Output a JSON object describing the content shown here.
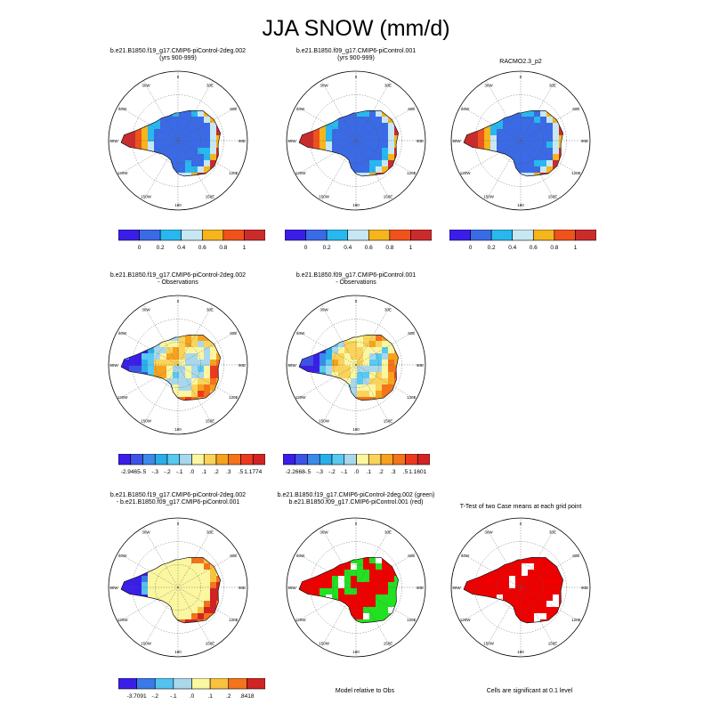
{
  "figure": {
    "title": "JJA SNOW (mm/d)",
    "lon_labels": [
      "0",
      "30E",
      "60E",
      "90E",
      "120E",
      "150E",
      "180",
      "150W",
      "120W",
      "90W",
      "60W",
      "30W"
    ]
  },
  "rows": [
    {
      "panels": [
        {
          "title1": "b.e21.B1850.f19_g17.CMIP6-piControl-2deg.002",
          "title2": "(yrs 900-999)",
          "scheme": "abs"
        },
        {
          "title1": "b.e21.B1850.f09_g17.CMIP6-piControl.001",
          "title2": "(yrs 900-999)",
          "scheme": "abs"
        },
        {
          "title1": "RACMO2.3_p2",
          "title2": "",
          "scheme": "abs"
        }
      ],
      "colorbars": [
        {
          "labels": [
            "0",
            "0.2",
            "0.4",
            "0.6",
            "0.8",
            "1"
          ]
        },
        {
          "labels": [
            "0",
            "0.2",
            "0.4",
            "0.6",
            "0.8",
            "1"
          ]
        },
        {
          "labels": [
            "0",
            "0.2",
            "0.4",
            "0.6",
            "0.8",
            "1"
          ]
        }
      ]
    },
    {
      "panels": [
        {
          "title1": "b.e21.B1850.f19_g17.CMIP6-piControl-2deg.002",
          "title2": "- Observations",
          "scheme": "diff"
        },
        {
          "title1": "b.e21.B1850.f09_g17.CMIP6-piControl.001",
          "title2": "- Observations",
          "scheme": "diff"
        }
      ],
      "colorbars": [
        {
          "labels": [
            "-2.9465",
            "-.5",
            "-.3",
            "-.2",
            "-.1",
            ".0",
            ".1",
            ".2",
            ".3",
            ".5",
            "1.1774"
          ]
        },
        {
          "labels": [
            "-2.2668",
            "-.5",
            "-.3",
            "-.2",
            "-.1",
            ".0",
            ".1",
            ".2",
            ".3",
            ".5",
            "1.1601"
          ]
        }
      ]
    },
    {
      "panels": [
        {
          "title1": "b.e21.B1850.f19_g17.CMIP6-piControl-2deg.002",
          "title2": "- b.e21.B1850.f09_g17.CMIP6-piControl.001",
          "scheme": "diff2"
        },
        {
          "title1": "b.e21.B1850.f19_g17.CMIP6-piControl-2deg.002 (green)",
          "title2": "b.e21.B1850.f09_g17.CMIP6-piControl.001 (red)",
          "scheme": "rg"
        },
        {
          "title1": "T-Test of two Case means at each grid point",
          "title2": "",
          "scheme": "ttest"
        }
      ],
      "colorbars": [
        {
          "labels": [
            "-3.7091",
            "-.2",
            "-.1",
            ".0",
            ".1",
            ".2",
            ".8418"
          ]
        }
      ],
      "notes": [
        "Model relative to Obs",
        "Cells are significant at 0.1 level"
      ]
    }
  ],
  "palettes": {
    "abs": [
      "#3a1ee8",
      "#3a6ae6",
      "#28b8ef",
      "#c7e7f4",
      "#f5b51d",
      "#f0521c",
      "#cc2b2b"
    ],
    "diff": [
      "#3a1ee8",
      "#3d52e6",
      "#3b8ae9",
      "#2aaeea",
      "#58c9f0",
      "#a9d8ec",
      "#fbf6a0",
      "#fad35b",
      "#f6a21e",
      "#f3741b",
      "#ec3a1f",
      "#d12323"
    ],
    "diff2": [
      "#3a1ee8",
      "#3b78e8",
      "#52c2ee",
      "#a9d8ec",
      "#fbf6a0",
      "#f8c13e",
      "#f3741b",
      "#d12323"
    ],
    "rg": [
      "#ee0000",
      "#22e022"
    ],
    "ttest": [
      "#ee0000"
    ]
  }
}
